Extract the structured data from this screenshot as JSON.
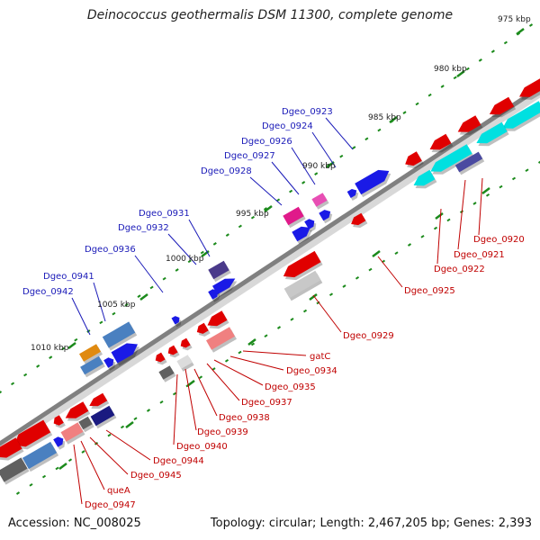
{
  "header": {
    "title": "Deinococcus geothermalis DSM 11300, complete genome"
  },
  "footer": {
    "accession": "Accession: NC_008025",
    "summary": "Topology: circular; Length: 2,467,205 bp; Genes: 2,393"
  },
  "colors": {
    "backbone": "#808080",
    "tick": "#1b8a1b",
    "forward_gene": "#1a1ae6",
    "reverse_gene": "#e00000",
    "rna_gene": "#00e0e0",
    "top_label": "#1a1ab8",
    "bottom_label": "#c00000"
  },
  "ticks": [
    {
      "label": "975 kbp"
    },
    {
      "label": "980 kbp"
    },
    {
      "label": "985 kbp"
    },
    {
      "label": "990 kbp"
    },
    {
      "label": "995 kbp"
    },
    {
      "label": "1000 kbp"
    },
    {
      "label": "1005 kbp"
    },
    {
      "label": "1010 kbp"
    }
  ],
  "top_labels": [
    {
      "name": "Dgeo_0923"
    },
    {
      "name": "Dgeo_0924"
    },
    {
      "name": "Dgeo_0926"
    },
    {
      "name": "Dgeo_0927"
    },
    {
      "name": "Dgeo_0928"
    },
    {
      "name": "Dgeo_0931"
    },
    {
      "name": "Dgeo_0932"
    },
    {
      "name": "Dgeo_0936"
    },
    {
      "name": "Dgeo_0941"
    },
    {
      "name": "Dgeo_0942"
    }
  ],
  "bottom_labels": [
    {
      "name": "Dgeo_0920"
    },
    {
      "name": "Dgeo_0921"
    },
    {
      "name": "Dgeo_0922"
    },
    {
      "name": "Dgeo_0925"
    },
    {
      "name": "Dgeo_0929"
    },
    {
      "name": "gatC"
    },
    {
      "name": "Dgeo_0934"
    },
    {
      "name": "Dgeo_0935"
    },
    {
      "name": "Dgeo_0937"
    },
    {
      "name": "Dgeo_0938"
    },
    {
      "name": "Dgeo_0939"
    },
    {
      "name": "Dgeo_0940"
    },
    {
      "name": "Dgeo_0944"
    },
    {
      "name": "Dgeo_0945"
    },
    {
      "name": "queA"
    },
    {
      "name": "Dgeo_0947"
    }
  ]
}
